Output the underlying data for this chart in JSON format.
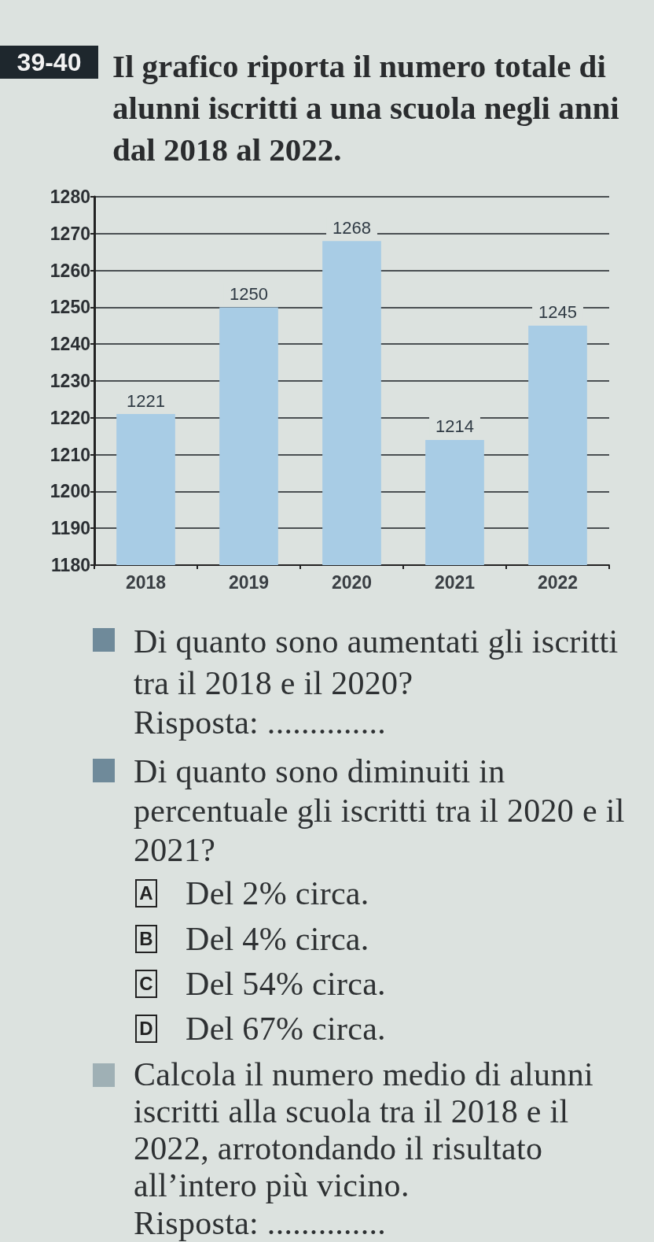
{
  "chart_data": {
    "type": "bar",
    "title": "Il grafico riporta il numero totale di alunni iscritti a una scuola negli anni dal 2018 al 2022.",
    "categories": [
      "2018",
      "2019",
      "2020",
      "2021",
      "2022"
    ],
    "values": [
      1221,
      1250,
      1268,
      1214,
      1245
    ],
    "color": "#a8cce5",
    "ylim": [
      1180,
      1280
    ],
    "yticks": [
      1180,
      1190,
      1200,
      1210,
      1220,
      1230,
      1240,
      1250,
      1260,
      1270,
      1280
    ],
    "grid": "y",
    "data_labels": true,
    "annotations": [
      "39-40",
      "Di quanto sono aumentati gli iscritti tra il 2018 e il 2020?",
      "Risposta: ..............",
      "Di quanto sono diminuiti in percentuale gli iscritti tra il 2020 e il 2021?",
      "A",
      "Del 2% circa.",
      "B",
      "Del 4% circa.",
      "C",
      "Del 54% circa.",
      "D",
      "Del 67% circa.",
      "Calcola il numero medio di alunni iscritti alla scuola tra il 2018 e il 2022, arrotondando il risultato all’intero più vicino.",
      "Risposta: .............."
    ]
  }
}
